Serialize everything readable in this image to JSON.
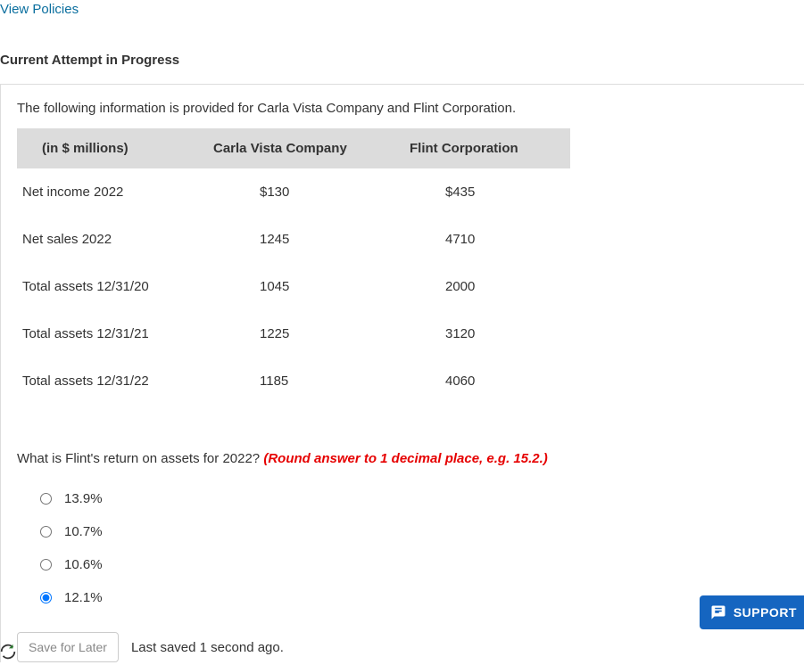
{
  "links": {
    "view_policies": "View Policies"
  },
  "header": {
    "attempt": "Current Attempt in Progress"
  },
  "intro": "The following information is provided for Carla Vista Company and Flint Corporation.",
  "table": {
    "columns": [
      "(in $ millions)",
      "Carla Vista Company",
      "Flint Corporation"
    ],
    "rows": [
      [
        "Net income 2022",
        "$130",
        "$435"
      ],
      [
        "Net sales 2022",
        "1245",
        "4710"
      ],
      [
        "Total assets 12/31/20",
        "1045",
        "2000"
      ],
      [
        "Total assets 12/31/21",
        "1225",
        "3120"
      ],
      [
        "Total assets 12/31/22",
        "1185",
        "4060"
      ]
    ]
  },
  "question": {
    "prompt": "What is Flint's return on assets for 2022? ",
    "hint": "(Round answer to 1 decimal place, e.g. 15.2.)"
  },
  "options": [
    "13.9%",
    "10.7%",
    "10.6%",
    "12.1%"
  ],
  "selected_index": 3,
  "footer": {
    "save_label": "Save for Later",
    "saved_text": "Last saved 1 second ago."
  },
  "support": {
    "label": "SUPPORT"
  },
  "colors": {
    "link": "#0a6e9e",
    "hint": "#e60000",
    "support_bg": "#1565c0",
    "table_header_bg": "#dcdcdc"
  }
}
